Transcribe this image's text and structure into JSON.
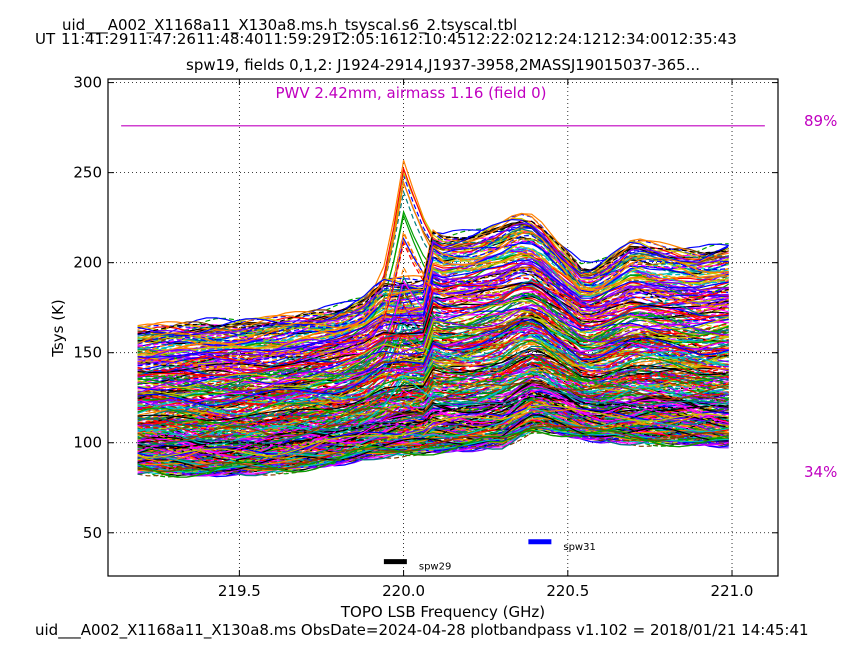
{
  "header": {
    "file_title": "uid___A002_X1168a11_X130a8.ms.h_tsyscal.s6_2.tsyscal.tbl",
    "ut_label": "UT",
    "ut_times": [
      "11:41:29",
      "11:47:26",
      "11:48:40",
      "11:59:29",
      "12:05:16",
      "12:10:45",
      "12:22:02",
      "12:24:12",
      "12:34:00",
      "12:35:43"
    ],
    "plot_title": "spw19,  fields 0,1,2: J1924-2914,J1937-3958,2MASSJ19015037-365..."
  },
  "footer": {
    "text": "uid___A002_X1168a11_X130a8.ms  ObsDate=2024-04-28   plotbandpass v1.102 = 2018/01/21 14:45:41"
  },
  "annotations": {
    "pwv": "PWV 2.42mm, airmass 1.16 (field 0)",
    "pwv_color": "#c000c0",
    "transmission_max": "89%",
    "transmission_min": "34%",
    "spw_markers": [
      {
        "label": "spw29",
        "x_start": 219.94,
        "x_end": 220.01,
        "y": 34,
        "color": "#000000"
      },
      {
        "label": "spw31",
        "x_start": 220.38,
        "x_end": 220.45,
        "y": 45,
        "color": "#0000ff"
      }
    ]
  },
  "chart_data": {
    "type": "line",
    "xlabel": "TOPO LSB Frequency (GHz)",
    "ylabel": "Tsys (K)",
    "xlim": [
      219.1,
      221.14
    ],
    "ylim": [
      26,
      302
    ],
    "x_ticks": [
      219.5,
      220.0,
      220.5,
      221.0
    ],
    "x_tick_labels": [
      "219.5",
      "220.0",
      "220.5",
      "221.0"
    ],
    "y_ticks": [
      50,
      100,
      150,
      200,
      250,
      300
    ],
    "y_tick_labels": [
      "50",
      "100",
      "150",
      "200",
      "250",
      "300"
    ],
    "grid": true,
    "x_range_data": [
      219.19,
      221.0
    ],
    "atmospheric_transmission": {
      "x": [
        219.14,
        221.1
      ],
      "y": [
        276,
        276
      ],
      "color": "#c000c0"
    },
    "envelope_profiles": {
      "x": [
        219.19,
        219.4,
        219.6,
        219.8,
        219.9,
        219.95,
        220.0,
        220.05,
        220.1,
        220.2,
        220.3,
        220.35,
        220.4,
        220.45,
        220.5,
        220.55,
        220.6,
        220.7,
        220.8,
        220.9,
        221.0
      ],
      "upper": [
        163,
        166,
        168,
        174,
        182,
        200,
        256,
        230,
        214,
        216,
        222,
        226,
        224,
        214,
        205,
        196,
        200,
        212,
        208,
        206,
        210
      ],
      "lower": [
        86,
        84,
        86,
        90,
        94,
        95,
        96,
        97,
        97,
        98,
        100,
        105,
        110,
        108,
        106,
        104,
        103,
        102,
        102,
        101,
        100
      ]
    },
    "series_count_estimate": 400,
    "series_colors": [
      "#ff0000",
      "#0000ff",
      "#00a000",
      "#000000",
      "#c8c800",
      "#ff00ff",
      "#00c0c0",
      "#ff8000",
      "#8000ff",
      "#804000",
      "#008080"
    ]
  }
}
